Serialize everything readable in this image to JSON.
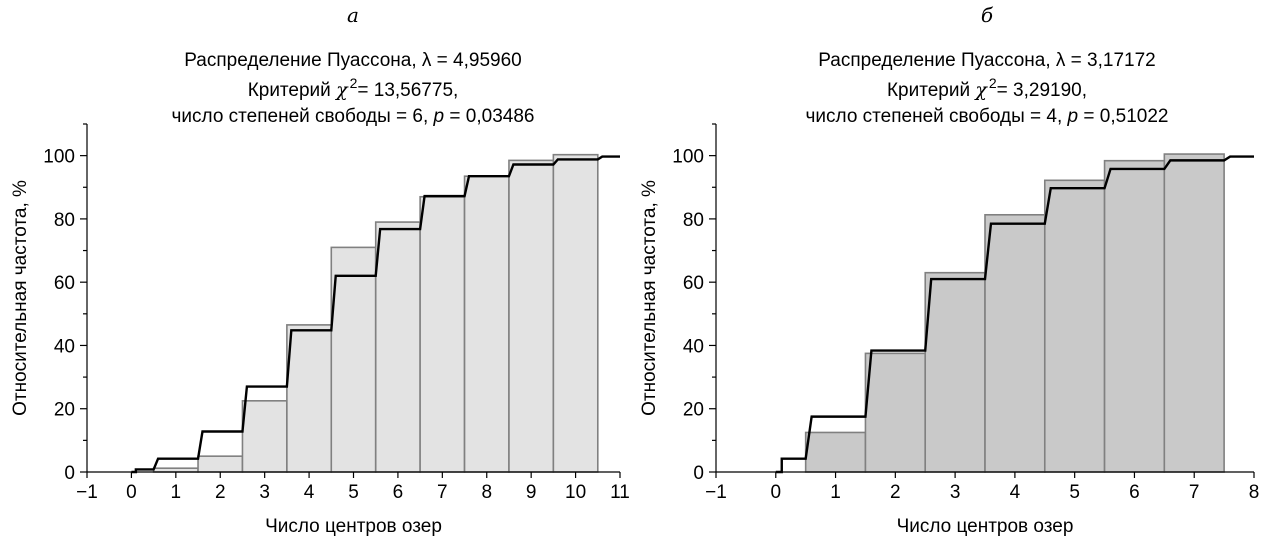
{
  "chart_data": [
    {
      "type": "bar",
      "panel_label": "а",
      "title_lines": [
        [
          "Распределение Пуассона, ",
          "λ",
          " = 4,95960"
        ],
        [
          "Критерий  ",
          "χ",
          "2",
          "= 13,56775,"
        ],
        [
          "число степеней свободы = 6, ",
          "p",
          " = 0,03486"
        ]
      ],
      "xlabel": "Число центров озер",
      "ylabel": "Относительная частота, %",
      "xlim": [
        -1,
        11
      ],
      "ylim": [
        0,
        110
      ],
      "xticks": [
        -1,
        0,
        1,
        2,
        3,
        4,
        5,
        6,
        7,
        8,
        9,
        10,
        11
      ],
      "yticks": [
        0,
        20,
        40,
        60,
        80,
        100
      ],
      "y_minor_ticks": [
        10,
        30,
        50,
        70,
        90,
        110
      ],
      "bar_color": "#e3e3e3",
      "bar_edge_color": "#808080",
      "series": [
        {
          "kind": "histogram",
          "x": [
            1,
            2,
            3,
            4,
            5,
            6,
            7,
            8,
            9,
            10
          ],
          "values": [
            1.2,
            5,
            22.5,
            46.5,
            71,
            79,
            87,
            93.5,
            98.5,
            100.3
          ]
        },
        {
          "kind": "step",
          "x": [
            0,
            1,
            2,
            3,
            4,
            5,
            6,
            7,
            8,
            9,
            10
          ],
          "values": [
            0.8,
            4.2,
            12.8,
            27,
            44.8,
            62,
            76.8,
            87.2,
            93.5,
            97.2,
            98.8
          ],
          "tail_value": 99.7,
          "x_end": 11
        }
      ]
    },
    {
      "type": "bar",
      "panel_label": "б",
      "title_lines": [
        [
          "Распределение Пуассона,  ",
          "λ",
          " = 3,17172"
        ],
        [
          "Критерий  ",
          "χ",
          "2",
          "= 3,29190,"
        ],
        [
          "число степеней свободы = 4, ",
          "p",
          " = 0,51022"
        ]
      ],
      "xlabel": "Число центров озер",
      "ylabel": "Относительная частота, %",
      "xlim": [
        -1,
        8
      ],
      "ylim": [
        0,
        110
      ],
      "xticks": [
        -1,
        0,
        1,
        2,
        3,
        4,
        5,
        6,
        7,
        8
      ],
      "yticks": [
        0,
        20,
        40,
        60,
        80,
        100
      ],
      "y_minor_ticks": [
        10,
        30,
        50,
        70,
        90,
        110
      ],
      "bar_color": "#c9c9c9",
      "bar_edge_color": "#808080",
      "series": [
        {
          "kind": "histogram",
          "x": [
            1,
            2,
            3,
            4,
            5,
            6,
            7
          ],
          "values": [
            12.5,
            37.5,
            63,
            81.3,
            92.2,
            98.4,
            100.5
          ]
        },
        {
          "kind": "step",
          "x": [
            0,
            1,
            2,
            3,
            4,
            5,
            6,
            7
          ],
          "values": [
            4.2,
            17.5,
            38.4,
            61,
            78.5,
            89.7,
            95.8,
            98.5
          ],
          "tail_value": 99.7,
          "x_end": 8
        }
      ]
    }
  ]
}
